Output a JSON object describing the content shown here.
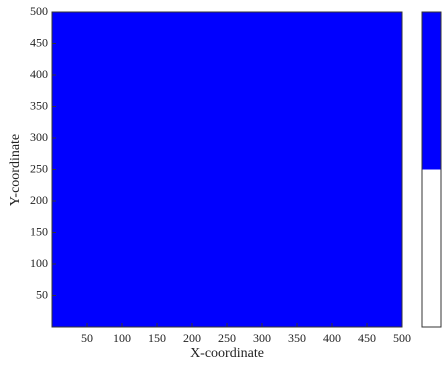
{
  "chart_data": {
    "type": "heatmap",
    "x_label": "X-coordinate",
    "y_label": "Y-coordinate",
    "xlim": [
      0,
      500
    ],
    "ylim": [
      0,
      500
    ],
    "xticks": [
      50,
      100,
      150,
      200,
      250,
      300,
      350,
      400,
      450,
      500
    ],
    "yticks": [
      50,
      100,
      150,
      200,
      250,
      300,
      350,
      400,
      450,
      500
    ],
    "colors": [
      "#ffffff",
      "#0000ff"
    ],
    "values": [
      [
        1,
        1,
        1,
        1,
        1,
        1,
        1,
        1,
        1,
        1
      ],
      [
        1,
        1,
        1,
        1,
        1,
        1,
        1,
        1,
        1,
        1
      ],
      [
        1,
        1,
        1,
        1,
        1,
        1,
        1,
        1,
        1,
        1
      ],
      [
        1,
        1,
        1,
        1,
        1,
        1,
        1,
        1,
        1,
        1
      ],
      [
        1,
        1,
        1,
        1,
        1,
        1,
        1,
        1,
        1,
        1
      ],
      [
        1,
        1,
        1,
        1,
        1,
        1,
        1,
        1,
        1,
        1
      ],
      [
        1,
        1,
        1,
        1,
        1,
        1,
        1,
        1,
        1,
        1
      ],
      [
        1,
        1,
        1,
        1,
        1,
        1,
        1,
        1,
        1,
        1
      ],
      [
        1,
        1,
        1,
        1,
        1,
        1,
        1,
        1,
        1,
        1
      ],
      [
        1,
        1,
        1,
        1,
        1,
        1,
        1,
        1,
        1,
        1
      ]
    ]
  }
}
